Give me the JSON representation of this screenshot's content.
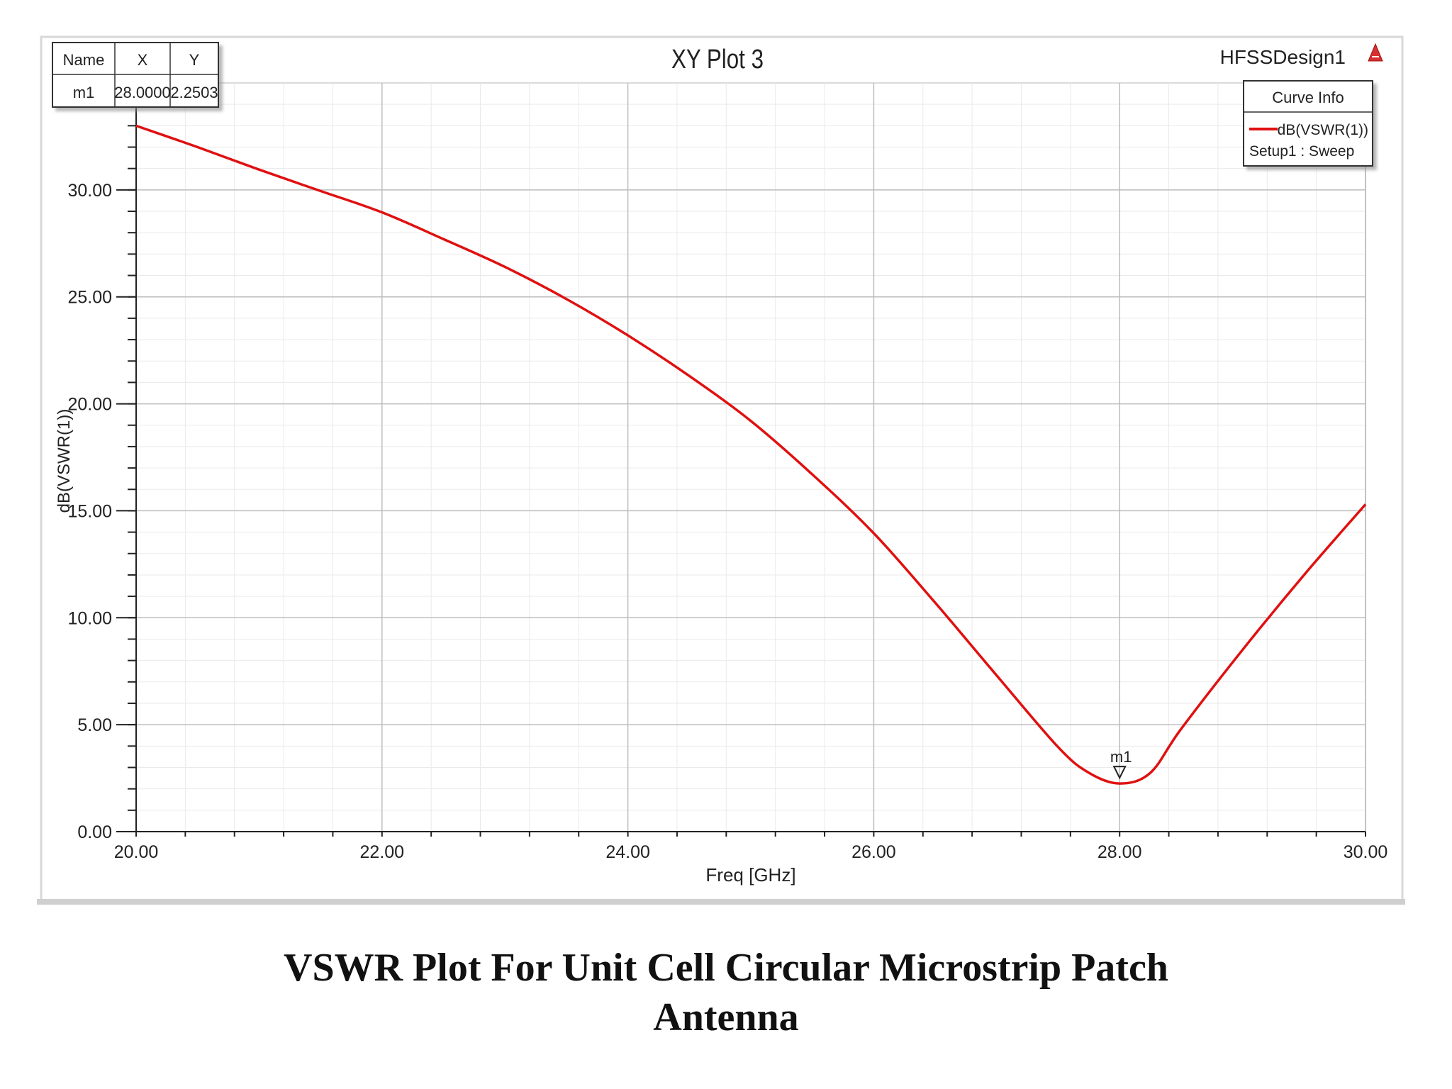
{
  "chart_data": {
    "type": "line",
    "title": "XY Plot 3",
    "design_name": "HFSSDesign1",
    "xlabel": "Freq [GHz]",
    "ylabel": "dB(VSWR(1))",
    "xlim": [
      20,
      30
    ],
    "ylim": [
      0,
      35
    ],
    "x_ticks": [
      "20.00",
      "22.00",
      "24.00",
      "26.00",
      "28.00",
      "30.00"
    ],
    "y_ticks": [
      "0.00",
      "5.00",
      "10.00",
      "15.00",
      "20.00",
      "25.00",
      "30.00"
    ],
    "x_minor_step": 0.4,
    "y_minor_step": 1,
    "grid": true,
    "legend_position": "top-right",
    "legend": {
      "title": "Curve Info",
      "entries": [
        {
          "label": "dB(VSWR(1))",
          "sublabel": "Setup1 : Sweep",
          "color": "#e01010"
        }
      ]
    },
    "series": [
      {
        "name": "dB(VSWR(1))",
        "color": "#e01010",
        "x": [
          20.0,
          20.5,
          21.0,
          21.5,
          22.0,
          22.5,
          23.0,
          23.5,
          24.0,
          24.5,
          25.0,
          25.5,
          26.0,
          26.5,
          27.0,
          27.5,
          27.75,
          28.0,
          28.25,
          28.5,
          29.0,
          29.5,
          30.0
        ],
        "y": [
          33.0,
          32.0,
          30.95,
          29.95,
          28.95,
          27.7,
          26.4,
          24.9,
          23.2,
          21.3,
          19.2,
          16.7,
          13.95,
          10.7,
          7.3,
          3.95,
          2.75,
          2.2503,
          2.75,
          4.8,
          8.5,
          12.0,
          15.3
        ]
      }
    ],
    "markers": [
      {
        "name": "m1",
        "x": 28.0,
        "y": 2.2503
      }
    ],
    "marker_table": {
      "headers": [
        "Name",
        "X",
        "Y"
      ],
      "rows": [
        [
          "m1",
          "28.0000",
          "2.2503"
        ]
      ]
    }
  },
  "caption": {
    "line1": "VSWR Plot For Unit Cell Circular Microstrip Patch",
    "line2": "Antenna"
  }
}
